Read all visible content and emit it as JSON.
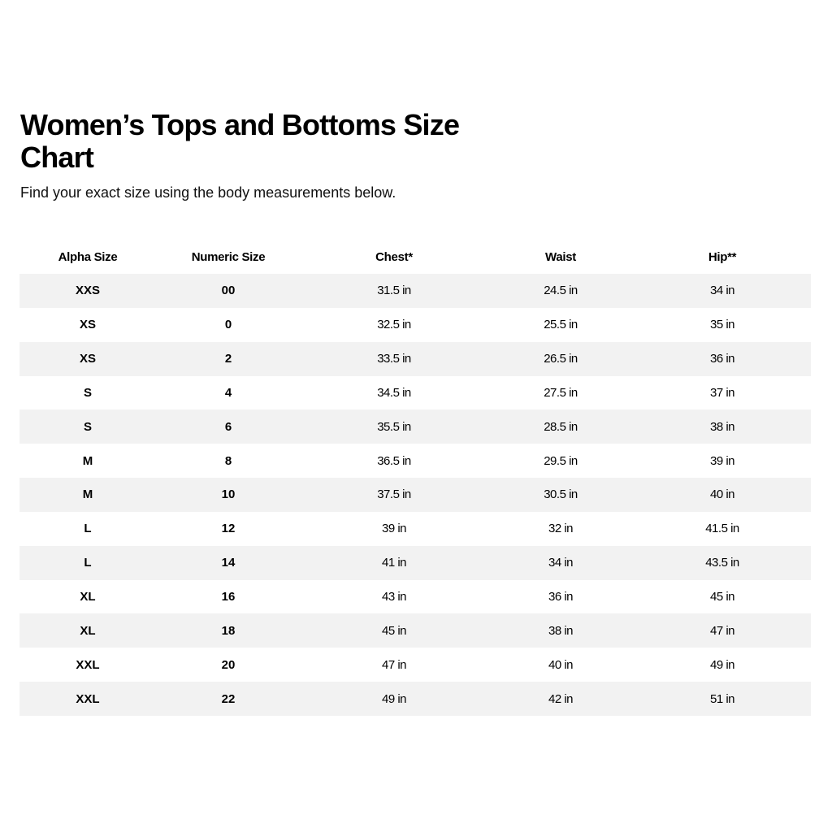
{
  "title": "Women’s Tops and Bottoms Size Chart",
  "subtitle": "Find your exact size using the body measurements below.",
  "headers": [
    "Alpha Size",
    "Numeric Size",
    "Chest*",
    "Waist",
    "Hip**"
  ],
  "rows": [
    [
      "XXS",
      "00",
      "31.5 in",
      "24.5 in",
      "34 in"
    ],
    [
      "XS",
      "0",
      "32.5 in",
      "25.5 in",
      "35 in"
    ],
    [
      "XS",
      "2",
      "33.5 in",
      "26.5 in",
      "36 in"
    ],
    [
      "S",
      "4",
      "34.5 in",
      "27.5 in",
      "37 in"
    ],
    [
      "S",
      "6",
      "35.5 in",
      "28.5 in",
      "38 in"
    ],
    [
      "M",
      "8",
      "36.5 in",
      "29.5 in",
      "39 in"
    ],
    [
      "M",
      "10",
      "37.5 in",
      "30.5 in",
      "40 in"
    ],
    [
      "L",
      "12",
      "39 in",
      "32 in",
      "41.5 in"
    ],
    [
      "L",
      "14",
      "41 in",
      "34 in",
      "43.5 in"
    ],
    [
      "XL",
      "16",
      "43 in",
      "36 in",
      "45 in"
    ],
    [
      "XL",
      "18",
      "45 in",
      "38 in",
      "47 in"
    ],
    [
      "XXL",
      "20",
      "47 in",
      "40 in",
      "49 in"
    ],
    [
      "XXL",
      "22",
      "49 in",
      "42 in",
      "51 in"
    ]
  ],
  "colors": {
    "stripe": "#f2f2f2",
    "text": "#000000"
  }
}
